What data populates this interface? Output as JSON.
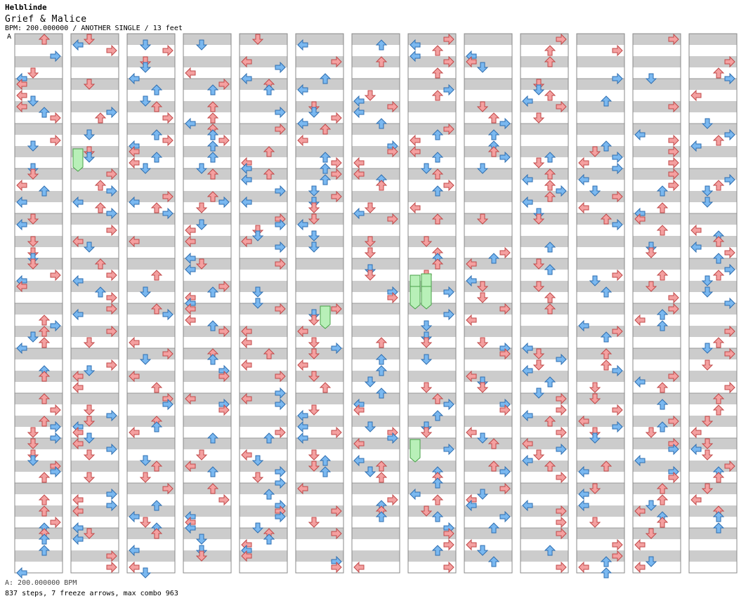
{
  "header": {
    "artist": "Helblinde",
    "title": "Grief & Malice",
    "meta": "BPM: 200.000000 / ANOTHER SINGLE / 13 feet",
    "bpm_marker": "A"
  },
  "footer": {
    "bpm_line": "A: 200.000000 BPM",
    "stats_line": "837 steps, 7 freeze arrows, max combo 963"
  },
  "chart_data": {
    "type": "step-chart",
    "columns": 13,
    "measures_per_column": 12,
    "lanes": [
      "left",
      "down",
      "up",
      "right"
    ],
    "steps": 837,
    "freeze_arrows": 7,
    "max_combo": 963,
    "bpm": 200.0,
    "colors": {
      "quarter": "#f4a0a0",
      "quarter_stroke": "#c04848",
      "eighth": "#7ab8f0",
      "eighth_stroke": "#2e6eb0",
      "sixteenth": "#e8a0e8",
      "freeze": "#b8f0b8",
      "freeze_stroke": "#48a048",
      "band_gray": "#cccccc",
      "frame": "#888888"
    }
  }
}
